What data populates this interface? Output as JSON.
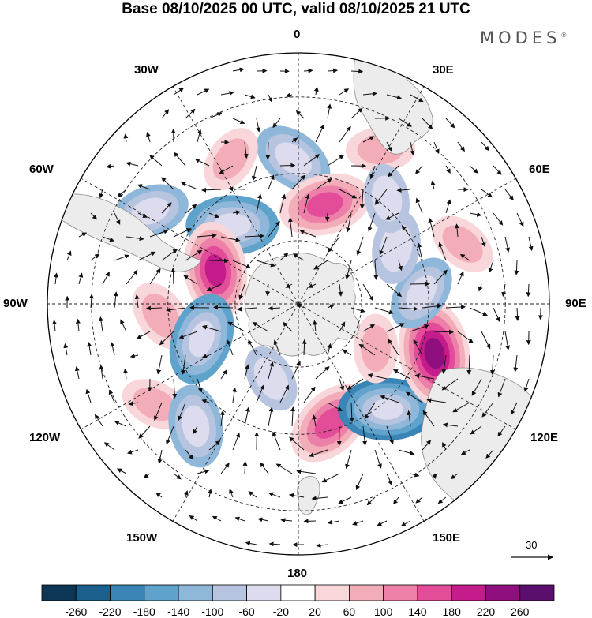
{
  "title": "Base 08/10/2025 00 UTC, valid 08/10/2025 21 UTC",
  "brand": "MODES",
  "brand_mark": "®",
  "longitude_labels": {
    "lon_0": "0",
    "lon_30e": "30E",
    "lon_60e": "60E",
    "lon_90e": "90E",
    "lon_120e": "120E",
    "lon_150e": "150E",
    "lon_180": "180",
    "lon_150w": "150W",
    "lon_120w": "120W",
    "lon_90w": "90W",
    "lon_60w": "60W",
    "lon_30w": "30W"
  },
  "reference_vector": {
    "value": "30"
  },
  "colorbar": {
    "labels": [
      "-260",
      "-220",
      "-180",
      "-140",
      "-100",
      "-60",
      "-20",
      "20",
      "60",
      "100",
      "140",
      "180",
      "220",
      "260"
    ],
    "colors": [
      "#0d3556",
      "#1b5f8c",
      "#3a85b6",
      "#5fa3cc",
      "#8fb7d9",
      "#b7c4e0",
      "#dcdcee",
      "#ffffff",
      "#f8d6d9",
      "#f3adb9",
      "#ec80a8",
      "#e24c99",
      "#c41c8a",
      "#8e0f7d",
      "#5a0f6e"
    ]
  },
  "map": {
    "projection": "south-polar-stereographic",
    "anomalies": [
      {
        "lon": -2,
        "lat": -46,
        "value": -120
      },
      {
        "lon": -25,
        "lat": -42,
        "value": 60
      },
      {
        "lon": 28,
        "lat": -38,
        "value": 60
      },
      {
        "lon": 15,
        "lat": -58,
        "value": 160
      },
      {
        "lon": -40,
        "lat": -58,
        "value": -160
      },
      {
        "lon": -58,
        "lat": -38,
        "value": -100
      },
      {
        "lon": -68,
        "lat": -62,
        "value": 180
      },
      {
        "lon": -95,
        "lat": -48,
        "value": 80
      },
      {
        "lon": -110,
        "lat": -58,
        "value": -160
      },
      {
        "lon": -125,
        "lat": -38,
        "value": 60
      },
      {
        "lon": -140,
        "lat": -42,
        "value": -120
      },
      {
        "lon": 165,
        "lat": -52,
        "value": 160
      },
      {
        "lon": 140,
        "lat": -48,
        "value": -180
      },
      {
        "lon": 110,
        "lat": -46,
        "value": 230
      },
      {
        "lon": 85,
        "lat": -52,
        "value": -100
      },
      {
        "lon": 60,
        "lat": -55,
        "value": -80
      },
      {
        "lon": 40,
        "lat": -48,
        "value": -60
      },
      {
        "lon": 70,
        "lat": -38,
        "value": 60
      },
      {
        "lon": -160,
        "lat": -65,
        "value": -60
      },
      {
        "lon": 120,
        "lat": -62,
        "value": 60
      }
    ]
  }
}
